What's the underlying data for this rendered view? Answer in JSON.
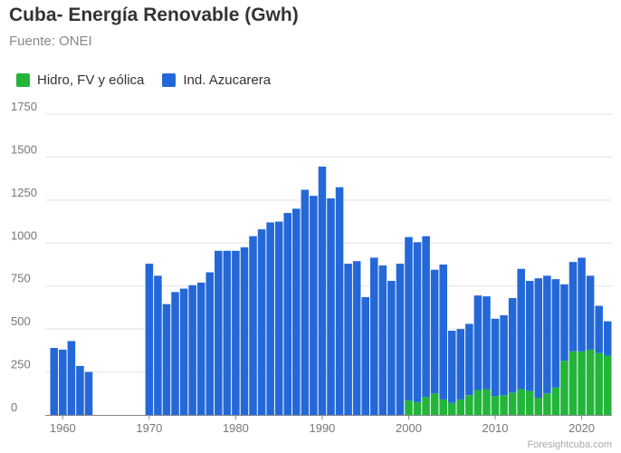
{
  "chart_data": {
    "type": "bar",
    "stacked": true,
    "title": "Cuba- Energía Renovable (Gwh)",
    "subtitle": "Fuente: ONEI",
    "source_credit": "Foresightcuba.com",
    "x": [
      1959,
      1960,
      1961,
      1962,
      1963,
      1964,
      1965,
      1966,
      1967,
      1968,
      1969,
      1970,
      1971,
      1972,
      1973,
      1974,
      1975,
      1976,
      1977,
      1978,
      1979,
      1980,
      1981,
      1982,
      1983,
      1984,
      1985,
      1986,
      1987,
      1988,
      1989,
      1990,
      1991,
      1992,
      1993,
      1994,
      1995,
      1996,
      1997,
      1998,
      1999,
      2000,
      2001,
      2002,
      2003,
      2004,
      2005,
      2006,
      2007,
      2008,
      2009,
      2010,
      2011,
      2012,
      2013,
      2014,
      2015,
      2016,
      2017,
      2018,
      2019,
      2020,
      2021,
      2022,
      2023
    ],
    "series": [
      {
        "name": "Hidro, FV y eólica",
        "color": "#22b53a",
        "values": [
          0,
          0,
          0,
          0,
          0,
          0,
          0,
          0,
          0,
          0,
          0,
          0,
          0,
          0,
          0,
          0,
          0,
          0,
          0,
          0,
          0,
          0,
          0,
          0,
          0,
          0,
          0,
          0,
          0,
          0,
          0,
          0,
          0,
          0,
          0,
          0,
          0,
          0,
          0,
          0,
          0,
          85,
          75,
          105,
          125,
          90,
          70,
          90,
          115,
          145,
          150,
          110,
          115,
          130,
          150,
          140,
          100,
          125,
          160,
          315,
          370,
          370,
          380,
          360,
          345
        ]
      },
      {
        "name": "Ind. Azucarera",
        "color": "#2468d8",
        "values": [
          390,
          380,
          430,
          285,
          250,
          0,
          0,
          0,
          0,
          0,
          0,
          880,
          810,
          645,
          715,
          735,
          755,
          770,
          830,
          955,
          955,
          955,
          975,
          1040,
          1080,
          1120,
          1125,
          1175,
          1200,
          1310,
          1275,
          1445,
          1260,
          1325,
          880,
          895,
          685,
          915,
          870,
          780,
          880,
          950,
          930,
          935,
          720,
          785,
          420,
          410,
          415,
          550,
          540,
          450,
          465,
          550,
          700,
          640,
          695,
          685,
          630,
          445,
          520,
          545,
          430,
          275,
          200
        ]
      }
    ],
    "xticks": [
      "1960",
      "1970",
      "1980",
      "1990",
      "2000",
      "2010",
      "2020"
    ],
    "yticks": [
      "0",
      "250",
      "500",
      "750",
      "1000",
      "1250",
      "1500",
      "1750"
    ],
    "ylim": [
      0,
      1750
    ],
    "xlim": [
      1958.5,
      2023.5
    ],
    "grid": true,
    "legend_position": "top-left"
  }
}
